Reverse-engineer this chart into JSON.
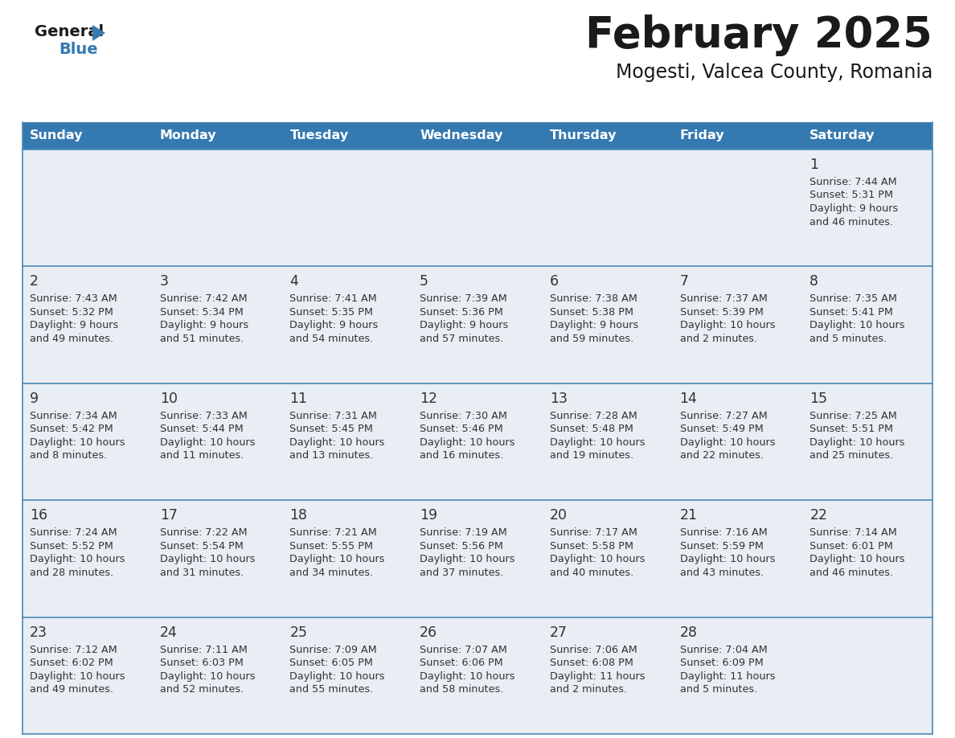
{
  "title": "February 2025",
  "subtitle": "Mogesti, Valcea County, Romania",
  "header_bg": "#3579b1",
  "header_text": "#ffffff",
  "cell_bg_odd": "#e8eef4",
  "cell_bg_even": "#ffffff",
  "border_color": "#4a8ab5",
  "day_number_color": "#333333",
  "info_text_color": "#333333",
  "days_of_week": [
    "Sunday",
    "Monday",
    "Tuesday",
    "Wednesday",
    "Thursday",
    "Friday",
    "Saturday"
  ],
  "weeks": [
    [
      {
        "day": "",
        "sunrise": "",
        "sunset": "",
        "daylight1": "",
        "daylight2": ""
      },
      {
        "day": "",
        "sunrise": "",
        "sunset": "",
        "daylight1": "",
        "daylight2": ""
      },
      {
        "day": "",
        "sunrise": "",
        "sunset": "",
        "daylight1": "",
        "daylight2": ""
      },
      {
        "day": "",
        "sunrise": "",
        "sunset": "",
        "daylight1": "",
        "daylight2": ""
      },
      {
        "day": "",
        "sunrise": "",
        "sunset": "",
        "daylight1": "",
        "daylight2": ""
      },
      {
        "day": "",
        "sunrise": "",
        "sunset": "",
        "daylight1": "",
        "daylight2": ""
      },
      {
        "day": "1",
        "sunrise": "Sunrise: 7:44 AM",
        "sunset": "Sunset: 5:31 PM",
        "daylight1": "Daylight: 9 hours",
        "daylight2": "and 46 minutes."
      }
    ],
    [
      {
        "day": "2",
        "sunrise": "Sunrise: 7:43 AM",
        "sunset": "Sunset: 5:32 PM",
        "daylight1": "Daylight: 9 hours",
        "daylight2": "and 49 minutes."
      },
      {
        "day": "3",
        "sunrise": "Sunrise: 7:42 AM",
        "sunset": "Sunset: 5:34 PM",
        "daylight1": "Daylight: 9 hours",
        "daylight2": "and 51 minutes."
      },
      {
        "day": "4",
        "sunrise": "Sunrise: 7:41 AM",
        "sunset": "Sunset: 5:35 PM",
        "daylight1": "Daylight: 9 hours",
        "daylight2": "and 54 minutes."
      },
      {
        "day": "5",
        "sunrise": "Sunrise: 7:39 AM",
        "sunset": "Sunset: 5:36 PM",
        "daylight1": "Daylight: 9 hours",
        "daylight2": "and 57 minutes."
      },
      {
        "day": "6",
        "sunrise": "Sunrise: 7:38 AM",
        "sunset": "Sunset: 5:38 PM",
        "daylight1": "Daylight: 9 hours",
        "daylight2": "and 59 minutes."
      },
      {
        "day": "7",
        "sunrise": "Sunrise: 7:37 AM",
        "sunset": "Sunset: 5:39 PM",
        "daylight1": "Daylight: 10 hours",
        "daylight2": "and 2 minutes."
      },
      {
        "day": "8",
        "sunrise": "Sunrise: 7:35 AM",
        "sunset": "Sunset: 5:41 PM",
        "daylight1": "Daylight: 10 hours",
        "daylight2": "and 5 minutes."
      }
    ],
    [
      {
        "day": "9",
        "sunrise": "Sunrise: 7:34 AM",
        "sunset": "Sunset: 5:42 PM",
        "daylight1": "Daylight: 10 hours",
        "daylight2": "and 8 minutes."
      },
      {
        "day": "10",
        "sunrise": "Sunrise: 7:33 AM",
        "sunset": "Sunset: 5:44 PM",
        "daylight1": "Daylight: 10 hours",
        "daylight2": "and 11 minutes."
      },
      {
        "day": "11",
        "sunrise": "Sunrise: 7:31 AM",
        "sunset": "Sunset: 5:45 PM",
        "daylight1": "Daylight: 10 hours",
        "daylight2": "and 13 minutes."
      },
      {
        "day": "12",
        "sunrise": "Sunrise: 7:30 AM",
        "sunset": "Sunset: 5:46 PM",
        "daylight1": "Daylight: 10 hours",
        "daylight2": "and 16 minutes."
      },
      {
        "day": "13",
        "sunrise": "Sunrise: 7:28 AM",
        "sunset": "Sunset: 5:48 PM",
        "daylight1": "Daylight: 10 hours",
        "daylight2": "and 19 minutes."
      },
      {
        "day": "14",
        "sunrise": "Sunrise: 7:27 AM",
        "sunset": "Sunset: 5:49 PM",
        "daylight1": "Daylight: 10 hours",
        "daylight2": "and 22 minutes."
      },
      {
        "day": "15",
        "sunrise": "Sunrise: 7:25 AM",
        "sunset": "Sunset: 5:51 PM",
        "daylight1": "Daylight: 10 hours",
        "daylight2": "and 25 minutes."
      }
    ],
    [
      {
        "day": "16",
        "sunrise": "Sunrise: 7:24 AM",
        "sunset": "Sunset: 5:52 PM",
        "daylight1": "Daylight: 10 hours",
        "daylight2": "and 28 minutes."
      },
      {
        "day": "17",
        "sunrise": "Sunrise: 7:22 AM",
        "sunset": "Sunset: 5:54 PM",
        "daylight1": "Daylight: 10 hours",
        "daylight2": "and 31 minutes."
      },
      {
        "day": "18",
        "sunrise": "Sunrise: 7:21 AM",
        "sunset": "Sunset: 5:55 PM",
        "daylight1": "Daylight: 10 hours",
        "daylight2": "and 34 minutes."
      },
      {
        "day": "19",
        "sunrise": "Sunrise: 7:19 AM",
        "sunset": "Sunset: 5:56 PM",
        "daylight1": "Daylight: 10 hours",
        "daylight2": "and 37 minutes."
      },
      {
        "day": "20",
        "sunrise": "Sunrise: 7:17 AM",
        "sunset": "Sunset: 5:58 PM",
        "daylight1": "Daylight: 10 hours",
        "daylight2": "and 40 minutes."
      },
      {
        "day": "21",
        "sunrise": "Sunrise: 7:16 AM",
        "sunset": "Sunset: 5:59 PM",
        "daylight1": "Daylight: 10 hours",
        "daylight2": "and 43 minutes."
      },
      {
        "day": "22",
        "sunrise": "Sunrise: 7:14 AM",
        "sunset": "Sunset: 6:01 PM",
        "daylight1": "Daylight: 10 hours",
        "daylight2": "and 46 minutes."
      }
    ],
    [
      {
        "day": "23",
        "sunrise": "Sunrise: 7:12 AM",
        "sunset": "Sunset: 6:02 PM",
        "daylight1": "Daylight: 10 hours",
        "daylight2": "and 49 minutes."
      },
      {
        "day": "24",
        "sunrise": "Sunrise: 7:11 AM",
        "sunset": "Sunset: 6:03 PM",
        "daylight1": "Daylight: 10 hours",
        "daylight2": "and 52 minutes."
      },
      {
        "day": "25",
        "sunrise": "Sunrise: 7:09 AM",
        "sunset": "Sunset: 6:05 PM",
        "daylight1": "Daylight: 10 hours",
        "daylight2": "and 55 minutes."
      },
      {
        "day": "26",
        "sunrise": "Sunrise: 7:07 AM",
        "sunset": "Sunset: 6:06 PM",
        "daylight1": "Daylight: 10 hours",
        "daylight2": "and 58 minutes."
      },
      {
        "day": "27",
        "sunrise": "Sunrise: 7:06 AM",
        "sunset": "Sunset: 6:08 PM",
        "daylight1": "Daylight: 11 hours",
        "daylight2": "and 2 minutes."
      },
      {
        "day": "28",
        "sunrise": "Sunrise: 7:04 AM",
        "sunset": "Sunset: 6:09 PM",
        "daylight1": "Daylight: 11 hours",
        "daylight2": "and 5 minutes."
      },
      {
        "day": "",
        "sunrise": "",
        "sunset": "",
        "daylight1": "",
        "daylight2": ""
      }
    ]
  ]
}
